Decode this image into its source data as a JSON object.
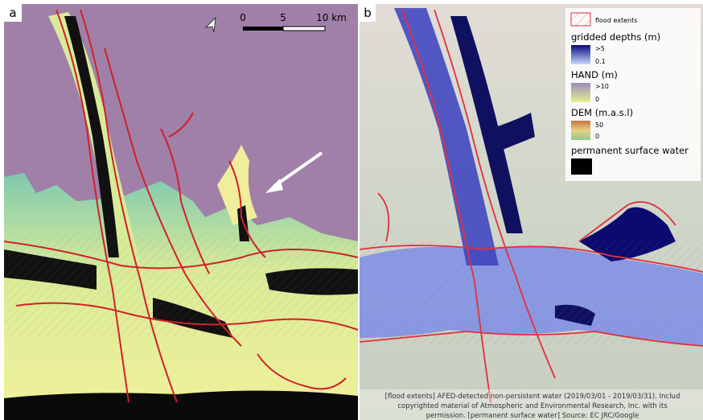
{
  "panel_a": {
    "label": "a",
    "scale_bar": {
      "ticks": [
        "0",
        "5",
        "10 km"
      ]
    }
  },
  "panel_b": {
    "label": "b",
    "legend": {
      "flood_extents": "flood extents",
      "gridded_depths": {
        "title": "gridded depths (m)",
        "max": ">5",
        "min": "0.1"
      },
      "hand": {
        "title": "HAND (m)",
        "max": ">10",
        "min": "0"
      },
      "dem": {
        "title": "DEM (m.a.s.l)",
        "max": "50",
        "min": "0"
      },
      "permanent_water": "permanent surface water"
    },
    "attribution": [
      "[flood extents] AFED-detected non-persistent water (2019/03/01 - 2019/03/31). Includ",
      "copyrighted material of Atmospheric and Environmental Research, Inc. with its",
      "permission. [permanent surface water] Source: EC JRC/Google"
    ]
  }
}
